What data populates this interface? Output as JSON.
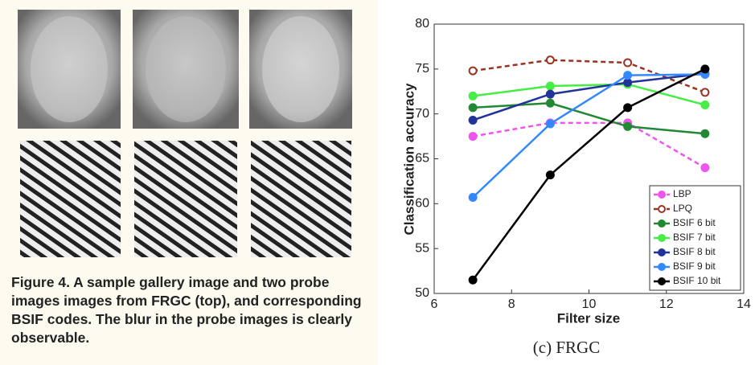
{
  "figure4": {
    "caption": "Figure 4. A sample gallery image and two probe images images from FRGC (top), and corresponding BSIF codes. The blur in the probe images is clearly observable."
  },
  "panel": {
    "caption": "(c) FRGC"
  },
  "chart_data": {
    "type": "line",
    "xlabel": "Filter size",
    "ylabel": "Classification accuracy",
    "x": [
      7,
      9,
      11,
      13
    ],
    "xlim": [
      6,
      14
    ],
    "xticks": [
      6,
      8,
      10,
      12,
      14
    ],
    "ylim": [
      50,
      80
    ],
    "yticks": [
      50,
      55,
      60,
      65,
      70,
      75,
      80
    ],
    "grid": false,
    "legend": "lower right",
    "series": [
      {
        "name": "LBP",
        "color": "#ee55ee",
        "dash": true,
        "open": false,
        "values": [
          67.5,
          69,
          69,
          64
        ]
      },
      {
        "name": "LPQ",
        "color": "#993322",
        "dash": true,
        "open": true,
        "values": [
          74.8,
          76,
          75.7,
          72.4
        ]
      },
      {
        "name": "BSIF 6 bit",
        "color": "#228833",
        "dash": false,
        "open": false,
        "values": [
          70.7,
          71.2,
          68.6,
          67.8
        ]
      },
      {
        "name": "BSIF 7 bit",
        "color": "#44ee44",
        "dash": false,
        "open": false,
        "values": [
          72,
          73.1,
          73.3,
          71
        ]
      },
      {
        "name": "BSIF 8 bit",
        "color": "#223399",
        "dash": false,
        "open": false,
        "values": [
          69.3,
          72.2,
          73.5,
          74.5
        ]
      },
      {
        "name": "BSIF 9 bit",
        "color": "#3388ff",
        "dash": false,
        "open": false,
        "values": [
          60.7,
          68.9,
          74.3,
          74.4
        ]
      },
      {
        "name": "BSIF 10 bit",
        "color": "#000000",
        "dash": false,
        "open": false,
        "values": [
          51.5,
          63.2,
          70.7,
          75
        ]
      }
    ]
  }
}
